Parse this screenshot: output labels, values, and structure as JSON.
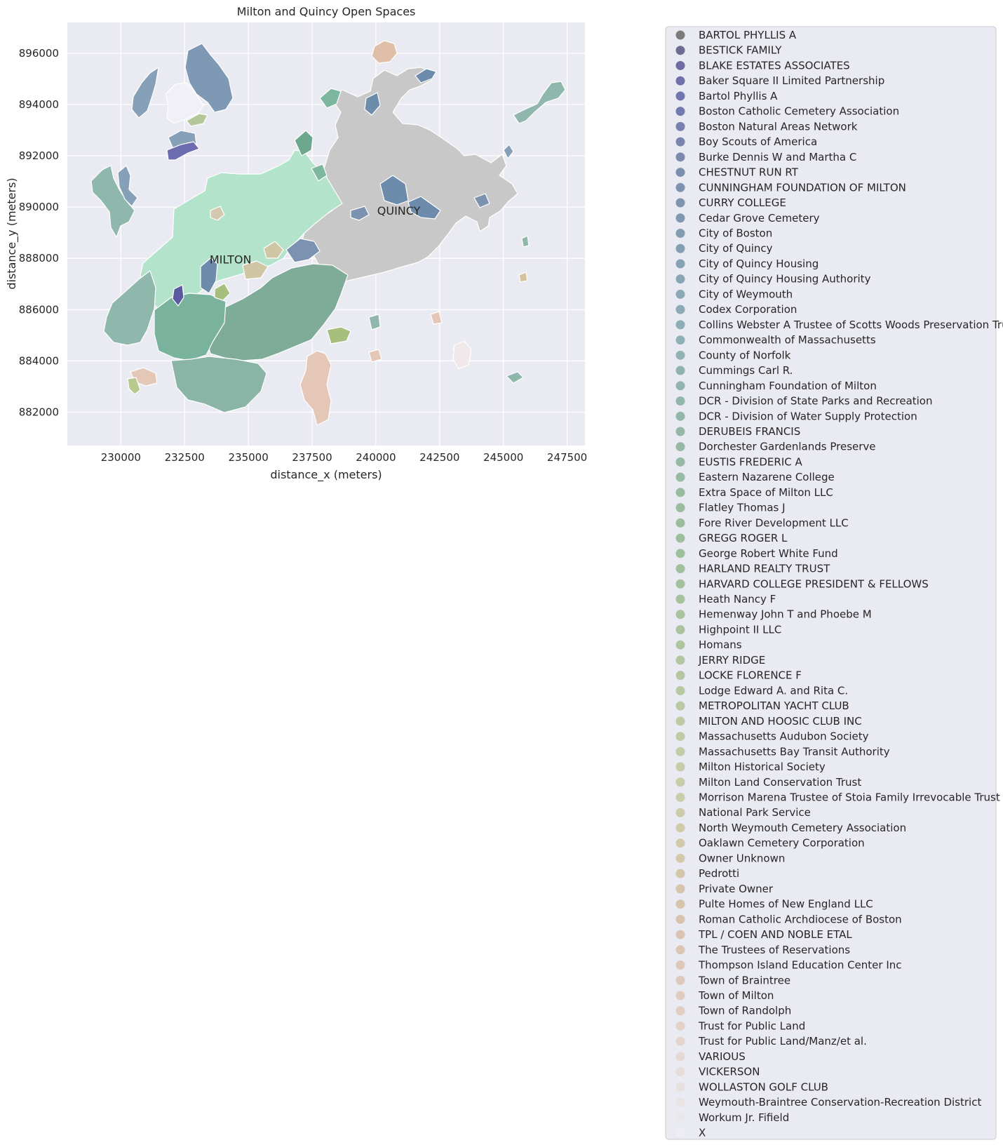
{
  "title": "Milton and Quincy Open Spaces",
  "xlabel": "distance_x (meters)",
  "ylabel": "distance_y (meters)",
  "x_ticks": [
    "230000",
    "232500",
    "235000",
    "237500",
    "240000",
    "242500",
    "245000",
    "247500"
  ],
  "y_ticks": [
    "882000",
    "884000",
    "886000",
    "888000",
    "890000",
    "892000",
    "894000",
    "896000"
  ],
  "place_labels": [
    "MILTON",
    "QUINCY"
  ],
  "colors": {
    "background": "#eaeaf2",
    "grid": "#ffffff",
    "town_fill": "#c8c8c8",
    "milton_light": "#b4e3cc",
    "green_dark": "#6aa893",
    "blue_gray": "#6f8fae",
    "purple": "#5b5aa1",
    "peach": "#e4c7b6",
    "olive": "#a7bf7d"
  },
  "chart_data": {
    "type": "map",
    "title": "Milton and Quincy Open Spaces",
    "xlabel": "distance_x (meters)",
    "ylabel": "distance_y (meters)",
    "xlim": [
      227900,
      248200
    ],
    "ylim": [
      880700,
      897200
    ],
    "grid": true,
    "legend_placement": "outside-right",
    "place_labels": [
      {
        "text": "MILTON",
        "x": 234300,
        "y": 887800
      },
      {
        "text": "QUINCY",
        "x": 240900,
        "y": 889700
      }
    ],
    "legend": [
      {
        "name": "BARTOL PHYLLIS A",
        "color": "#7b7b7b"
      },
      {
        "name": "BESTICK FAMILY",
        "color": "#6e6c90"
      },
      {
        "name": "BLAKE ESTATES ASSOCIATES",
        "color": "#6f6ca5"
      },
      {
        "name": "Baker Square II Limited Partnership",
        "color": "#7070aa"
      },
      {
        "name": "Bartol Phyllis A",
        "color": "#7274ad"
      },
      {
        "name": "Boston Catholic Cemetery Association",
        "color": "#737aae"
      },
      {
        "name": "Boston Natural Areas Network",
        "color": "#7780ae"
      },
      {
        "name": "Boy Scouts of America",
        "color": "#7a85ae"
      },
      {
        "name": "Burke Dennis W and Martha C",
        "color": "#7b89ac"
      },
      {
        "name": "CHESTNUT RUN RT",
        "color": "#7c8eae"
      },
      {
        "name": "CUNNINGHAM FOUNDATION OF MILTON",
        "color": "#7e92b0"
      },
      {
        "name": "CURRY COLLEGE",
        "color": "#7f95ae"
      },
      {
        "name": "Cedar Grove Cemetery",
        "color": "#8198b0"
      },
      {
        "name": "City of Boston",
        "color": "#829cb2"
      },
      {
        "name": "City of Quincy",
        "color": "#849fb2"
      },
      {
        "name": "City of Quincy Housing",
        "color": "#86a2b3"
      },
      {
        "name": "City of Quincy Housing Authority",
        "color": "#88a5b5"
      },
      {
        "name": "City of Weymouth",
        "color": "#8aa8b5"
      },
      {
        "name": "Codex Corporation",
        "color": "#8caab5"
      },
      {
        "name": "Collins Webster A Trustee of Scotts Woods Preservation Trust",
        "color": "#8daeb6"
      },
      {
        "name": "Commonwealth of Massachusetts",
        "color": "#8fb0b5"
      },
      {
        "name": "County of Norfolk",
        "color": "#90b2b3"
      },
      {
        "name": "Cummings Carl R.",
        "color": "#90b3b1"
      },
      {
        "name": "Cunningham Foundation of Milton",
        "color": "#91b4ae"
      },
      {
        "name": "DCR - Division of State Parks and Recreation",
        "color": "#92b5ac"
      },
      {
        "name": "DCR - Division of Water Supply Protection",
        "color": "#93b6aa"
      },
      {
        "name": "DERUBEIS FRANCIS",
        "color": "#94b7a8"
      },
      {
        "name": "Dorchester Gardenlands Preserve",
        "color": "#95b8a6"
      },
      {
        "name": "EUSTIS FREDERIC A",
        "color": "#96b9a4"
      },
      {
        "name": "Eastern Nazarene College",
        "color": "#97baa2"
      },
      {
        "name": "Extra Space of Milton LLC",
        "color": "#98bba0"
      },
      {
        "name": "Flatley Thomas J",
        "color": "#99bc9f"
      },
      {
        "name": "Fore River Development LLC",
        "color": "#9abd9e"
      },
      {
        "name": "GREGG ROGER L",
        "color": "#9cbe9d"
      },
      {
        "name": "George Robert White Fund",
        "color": "#9ebf9c"
      },
      {
        "name": "HARLAND REALTY TRUST",
        "color": "#a0c09c"
      },
      {
        "name": "HARVARD COLLEGE PRESIDENT & FELLOWS",
        "color": "#a2c19c"
      },
      {
        "name": "Heath Nancy F",
        "color": "#a5c29d"
      },
      {
        "name": "Hemenway John T and Phoebe M",
        "color": "#a8c39e"
      },
      {
        "name": "Highpoint II LLC",
        "color": "#abc49f"
      },
      {
        "name": "Homans",
        "color": "#aec5a0"
      },
      {
        "name": "JERRY RIDGE",
        "color": "#b1c6a1"
      },
      {
        "name": "LOCKE FLORENCE F",
        "color": "#b4c7a2"
      },
      {
        "name": "Lodge Edward A. and Rita C.",
        "color": "#b7c8a3"
      },
      {
        "name": "METROPOLITAN YACHT CLUB",
        "color": "#bac9a4"
      },
      {
        "name": "MILTON AND HOOSIC CLUB INC",
        "color": "#bdcaa5"
      },
      {
        "name": "Massachusetts Audubon Society",
        "color": "#c0cba6"
      },
      {
        "name": "Massachusetts Bay Transit Authority",
        "color": "#c3cba7"
      },
      {
        "name": "Milton Historical Society",
        "color": "#c6cca8"
      },
      {
        "name": "Milton Land Conservation Trust",
        "color": "#c9cca8"
      },
      {
        "name": "Morrison Marena Trustee of Stoia Family Irrevocable Trust",
        "color": "#cbcca9"
      },
      {
        "name": "National Park Service",
        "color": "#cdcba9"
      },
      {
        "name": "North Weymouth Cemetery Association",
        "color": "#cfcaa9"
      },
      {
        "name": "Oaklawn Cemetery Corporation",
        "color": "#d1c9a9"
      },
      {
        "name": "Owner Unknown",
        "color": "#d3c8a9"
      },
      {
        "name": "Pedrotti",
        "color": "#d4c6aa"
      },
      {
        "name": "Private Owner",
        "color": "#d6c5ab"
      },
      {
        "name": "Pulte Homes of New England LLC",
        "color": "#d7c4ad"
      },
      {
        "name": "Roman Catholic Archdiocese of Boston",
        "color": "#d9c3af"
      },
      {
        "name": "TPL / COEN AND NOBLE ETAL",
        "color": "#dac4b2"
      },
      {
        "name": "The Trustees of Reservations",
        "color": "#dbc5b5"
      },
      {
        "name": "Thompson Island Education Center Inc",
        "color": "#dcc7b8"
      },
      {
        "name": "Town of Braintree",
        "color": "#ddc9bb"
      },
      {
        "name": "Town of Milton",
        "color": "#dfccbf"
      },
      {
        "name": "Town of Randolph",
        "color": "#e0cec3"
      },
      {
        "name": "Trust for Public Land",
        "color": "#e2d2c8"
      },
      {
        "name": "Trust for Public Land/Manz/et al.",
        "color": "#e3d5cd"
      },
      {
        "name": "VARIOUS",
        "color": "#e4d9d3"
      },
      {
        "name": "VICKERSON",
        "color": "#e6dcd9"
      },
      {
        "name": "WOLLASTON GOLF CLUB",
        "color": "#e7e0de"
      },
      {
        "name": "Weymouth-Braintree Conservation-Recreation District",
        "color": "#e8e4e4"
      },
      {
        "name": "Workum Jr. Fifield",
        "color": "#e9e7ea"
      },
      {
        "name": "X",
        "color": "#eeeef4"
      }
    ]
  }
}
